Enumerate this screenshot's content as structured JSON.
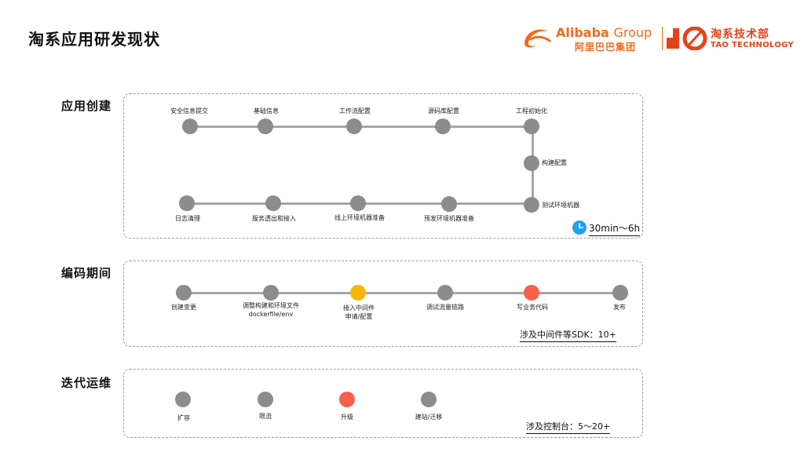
{
  "page_title": "淘系应用研发现状",
  "logos": {
    "alibaba_en": "Alibaba",
    "alibaba_group": "Group",
    "alibaba_cn": "阿里巴巴集团",
    "tao_cn": "淘系技术部",
    "tao_en": "TAO TECHNOLOGY",
    "brand_color": "#f26a1b"
  },
  "sections": {
    "app_creation": {
      "label": "应用创建",
      "steps": [
        "安全信息提交",
        "基础信息",
        "工作流配置",
        "源码库配置",
        "工程初始化",
        "构建配置",
        "测试环境机器",
        "预发环境机器准备",
        "线上环境机器准备",
        "服务透出和接入",
        "日志清理"
      ],
      "duration": "30min～6h",
      "duration_icon": "clock-icon"
    },
    "coding": {
      "label": "编码期间",
      "steps": [
        {
          "line1": "创建变更",
          "line2": ""
        },
        {
          "line1": "调整构建和环境文件",
          "line2": "dockerfile/env"
        },
        {
          "line1": "接入中间件",
          "line2": "申请/配置"
        },
        {
          "line1": "调试流量链路",
          "line2": ""
        },
        {
          "line1": "写业务代码",
          "line2": ""
        },
        {
          "line1": "发布",
          "line2": ""
        }
      ],
      "sdk_note": "涉及中间件等SDK：10+"
    },
    "iteration": {
      "label": "迭代运维",
      "steps": [
        "扩容",
        "限流",
        "升级",
        "建站/迁移"
      ],
      "console_note": "涉及控制台：5～20+"
    }
  },
  "colors": {
    "node_gray": "#8c8c8c",
    "node_highlight_yellow": "#f5b800",
    "node_highlight_red": "#f5614d",
    "line_gray": "#a6a6a6"
  }
}
